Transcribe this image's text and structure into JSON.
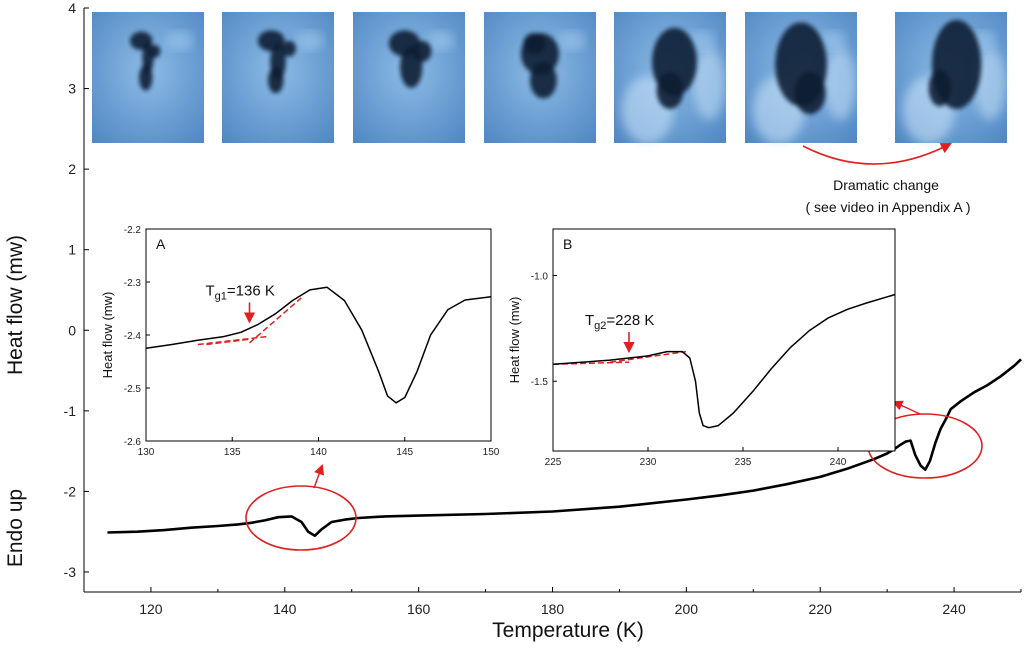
{
  "chart_data": {
    "type": "line",
    "xlabel": "Temperature (K)",
    "ylabel": "Heat flow (mw)",
    "ylabel_secondary": "Endo up",
    "xlim": [
      110,
      250
    ],
    "ylim": [
      -3.05,
      4
    ],
    "x_ticks": [
      120,
      140,
      160,
      180,
      200,
      220,
      240
    ],
    "y_ticks": [
      -3,
      -2,
      -1,
      0,
      1,
      2,
      3,
      4
    ],
    "y_tick_labels": [
      "-3",
      "-2",
      "-1",
      "0",
      "1",
      "2",
      "3",
      "4"
    ],
    "series": [
      {
        "x": [
          113.5,
          118,
          122,
          126,
          130,
          133,
          135,
          137,
          139,
          141,
          142.5,
          143.5,
          144.5,
          145.5,
          147,
          149,
          151,
          155,
          160,
          170,
          180,
          190,
          200,
          205,
          210,
          215,
          220,
          224,
          228,
          230,
          231,
          232,
          232.8,
          233.5,
          234.2,
          235,
          235.7,
          236.4,
          237.2,
          238,
          238.8,
          239.5,
          241,
          243,
          245,
          247,
          249,
          250
        ],
        "y": [
          -2.51,
          -2.5,
          -2.48,
          -2.45,
          -2.43,
          -2.41,
          -2.39,
          -2.36,
          -2.32,
          -2.31,
          -2.38,
          -2.5,
          -2.55,
          -2.47,
          -2.38,
          -2.35,
          -2.33,
          -2.31,
          -2.3,
          -2.28,
          -2.25,
          -2.19,
          -2.1,
          -2.05,
          -1.99,
          -1.91,
          -1.82,
          -1.72,
          -1.6,
          -1.53,
          -1.48,
          -1.42,
          -1.38,
          -1.37,
          -1.55,
          -1.68,
          -1.73,
          -1.62,
          -1.4,
          -1.22,
          -1.1,
          -0.98,
          -0.88,
          -0.77,
          -0.68,
          -0.57,
          -0.44,
          -0.36
        ]
      }
    ],
    "insets": [
      {
        "panel": "A",
        "xlim": [
          130,
          150
        ],
        "ylim": [
          -2.6,
          -2.2
        ],
        "x_ticks": [
          130,
          135,
          140,
          145,
          150
        ],
        "y_ticks": [
          -2.6,
          -2.5,
          -2.4,
          -2.3,
          -2.2
        ],
        "y_tick_labels": [
          "-2.6",
          "-2.5",
          "-2.4",
          "-2.3",
          "-2.2"
        ],
        "ylabel": "Heat flow (mw)",
        "tg_label": "T",
        "tg_sub": "g1",
        "tg_value": "=136 K",
        "tg_x": 136,
        "curve_x": [
          130,
          131.5,
          133,
          134.5,
          135.5,
          136.5,
          137.5,
          138.5,
          139.5,
          140.5,
          141.5,
          142.5,
          143.5,
          144,
          144.5,
          145,
          145.7,
          146.5,
          147.5,
          148.5,
          150
        ],
        "curve_y": [
          -2.425,
          -2.418,
          -2.41,
          -2.403,
          -2.395,
          -2.38,
          -2.36,
          -2.335,
          -2.315,
          -2.31,
          -2.335,
          -2.39,
          -2.47,
          -2.515,
          -2.528,
          -2.518,
          -2.47,
          -2.4,
          -2.352,
          -2.334,
          -2.328
        ],
        "tangents": [
          {
            "x": [
              133,
              137
            ],
            "y": [
              -2.418,
              -2.403
            ]
          },
          {
            "x": [
              136,
              139
            ],
            "y": [
              -2.415,
              -2.33
            ]
          },
          {
            "x": [
              133.5,
              136
            ],
            "y": [
              -2.418,
              -2.408
            ]
          }
        ]
      },
      {
        "panel": "B",
        "xlim": [
          225,
          243
        ],
        "ylim": [
          -1.83,
          -0.78
        ],
        "x_ticks": [
          225,
          230,
          235,
          240
        ],
        "y_ticks": [
          -1.5,
          -1.0
        ],
        "y_tick_labels": [
          "-1.5",
          "-1.0"
        ],
        "ylabel": "Heat flow (mw)",
        "tg_label": "T",
        "tg_sub": "g2",
        "tg_value": "=228 K",
        "tg_x": 229,
        "curve_x": [
          225,
          226.5,
          228,
          229,
          230,
          231,
          231.8,
          232.2,
          232.5,
          232.7,
          232.9,
          233.2,
          233.7,
          234.5,
          235.5,
          236.5,
          237.5,
          238.5,
          239.5,
          240.5,
          241.5,
          243
        ],
        "curve_y": [
          -1.42,
          -1.41,
          -1.4,
          -1.39,
          -1.38,
          -1.36,
          -1.36,
          -1.39,
          -1.5,
          -1.65,
          -1.71,
          -1.72,
          -1.71,
          -1.65,
          -1.55,
          -1.44,
          -1.34,
          -1.26,
          -1.2,
          -1.16,
          -1.13,
          -1.09
        ],
        "tangents": [
          {
            "x": [
              225,
              229
            ],
            "y": [
              -1.42,
              -1.41
            ]
          },
          {
            "x": [
              228,
              232
            ],
            "y": [
              -1.41,
              -1.36
            ]
          }
        ]
      }
    ],
    "annotations": {
      "dramatic_line1": "Dramatic change",
      "dramatic_line2": "( see video in Appendix A )"
    }
  },
  "colors": {
    "curve": "#000000",
    "annotation": "#e02020",
    "photo_base": "#5b8fc7",
    "photo_light": "#9fc8ee",
    "photo_dark": "#0e1f33"
  },
  "photos": [
    {
      "spot": "small-dark-spot"
    },
    {
      "spot": "small-dark-spot"
    },
    {
      "spot": "medium-dark-spot"
    },
    {
      "spot": "medium-dark-spot"
    },
    {
      "spot": "large-dark-spot"
    },
    {
      "spot": "large-dark-spot"
    },
    {
      "spot": "large-dark-spot"
    }
  ]
}
